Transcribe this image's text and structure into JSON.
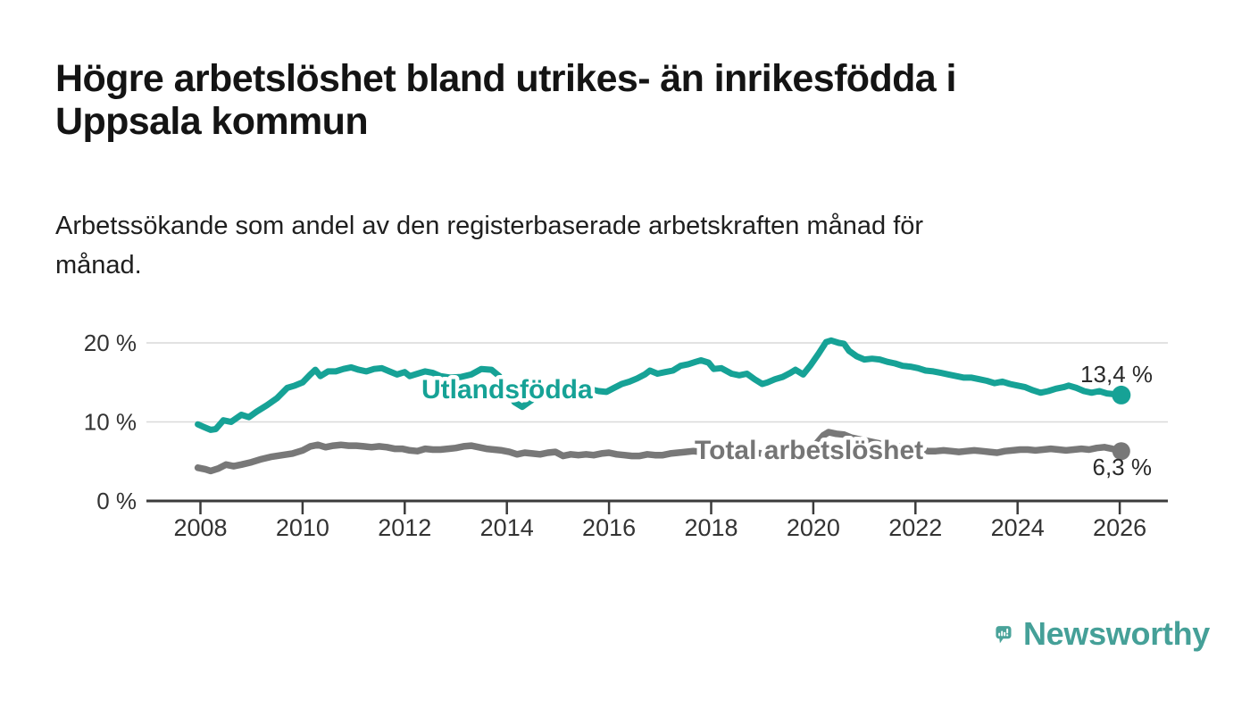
{
  "header": {
    "title_line1": "Högre arbetslöshet bland utrikes- än inrikesfödda i",
    "title_line2": "Uppsala kommun",
    "subtitle_line1": "Arbetssökande som andel av den registerbaserade arbetskraften månad för",
    "subtitle_line2": "månad."
  },
  "footer": {
    "brand": "Newsworthy",
    "logo_icon": "speech-bubble-bar-chart-icon"
  },
  "colors": {
    "accent_teal": "#16a296",
    "series_gray": "#787878",
    "label_gray": "#757575",
    "logo_teal": "#45a098",
    "grid": "#d9d9d9",
    "axis": "#3b3b3b",
    "tick_text": "#333333",
    "annotation_text": "#2a2a2a"
  },
  "chart_data": {
    "type": "line",
    "title": "Högre arbetslöshet bland utrikes- än inrikesfödda i Uppsala kommun",
    "subtitle": "Arbetssökande som andel av den registerbaserade arbetskraften månad för månad.",
    "xlabel": "",
    "ylabel": "",
    "grid": "horizontal",
    "legend_position": "inline-labels",
    "xlim": [
      2006.95,
      2026.95
    ],
    "ylim": [
      0,
      22.6
    ],
    "x_ticks": [
      2008,
      2010,
      2012,
      2014,
      2016,
      2018,
      2020,
      2022,
      2024,
      2026
    ],
    "y_ticks": [
      {
        "value": 0,
        "label": "0 %"
      },
      {
        "value": 10,
        "label": "10 %"
      },
      {
        "value": 20,
        "label": "20 %"
      }
    ],
    "series": [
      {
        "name": "Total arbetslöshet",
        "label": "Total arbetslöshet",
        "color": "#787878",
        "label_color": "#757575",
        "end_label": "6,3 %",
        "end_value": 6.3,
        "points": [
          [
            2007.95,
            4.2
          ],
          [
            2008.1,
            4.0
          ],
          [
            2008.2,
            3.8
          ],
          [
            2008.35,
            4.1
          ],
          [
            2008.5,
            4.6
          ],
          [
            2008.65,
            4.4
          ],
          [
            2008.8,
            4.6
          ],
          [
            2009.0,
            4.9
          ],
          [
            2009.2,
            5.3
          ],
          [
            2009.4,
            5.6
          ],
          [
            2009.6,
            5.8
          ],
          [
            2009.8,
            6.0
          ],
          [
            2010.0,
            6.4
          ],
          [
            2010.15,
            6.9
          ],
          [
            2010.3,
            7.1
          ],
          [
            2010.45,
            6.8
          ],
          [
            2010.6,
            7.0
          ],
          [
            2010.75,
            7.1
          ],
          [
            2010.9,
            7.0
          ],
          [
            2011.05,
            7.0
          ],
          [
            2011.2,
            6.9
          ],
          [
            2011.35,
            6.8
          ],
          [
            2011.5,
            6.9
          ],
          [
            2011.65,
            6.8
          ],
          [
            2011.8,
            6.6
          ],
          [
            2011.95,
            6.6
          ],
          [
            2012.1,
            6.4
          ],
          [
            2012.25,
            6.3
          ],
          [
            2012.4,
            6.6
          ],
          [
            2012.55,
            6.5
          ],
          [
            2012.7,
            6.5
          ],
          [
            2012.85,
            6.6
          ],
          [
            2013.0,
            6.7
          ],
          [
            2013.15,
            6.9
          ],
          [
            2013.3,
            7.0
          ],
          [
            2013.45,
            6.8
          ],
          [
            2013.6,
            6.6
          ],
          [
            2013.75,
            6.5
          ],
          [
            2013.9,
            6.4
          ],
          [
            2014.05,
            6.2
          ],
          [
            2014.2,
            5.9
          ],
          [
            2014.35,
            6.1
          ],
          [
            2014.5,
            6.0
          ],
          [
            2014.65,
            5.9
          ],
          [
            2014.8,
            6.1
          ],
          [
            2014.95,
            6.2
          ],
          [
            2015.1,
            5.7
          ],
          [
            2015.25,
            5.9
          ],
          [
            2015.4,
            5.8
          ],
          [
            2015.55,
            5.9
          ],
          [
            2015.7,
            5.8
          ],
          [
            2015.85,
            6.0
          ],
          [
            2016.0,
            6.1
          ],
          [
            2016.15,
            5.9
          ],
          [
            2016.3,
            5.8
          ],
          [
            2016.45,
            5.7
          ],
          [
            2016.6,
            5.7
          ],
          [
            2016.75,
            5.9
          ],
          [
            2016.9,
            5.8
          ],
          [
            2017.05,
            5.8
          ],
          [
            2017.2,
            6.0
          ],
          [
            2017.35,
            6.1
          ],
          [
            2017.5,
            6.2
          ],
          [
            2017.65,
            6.3
          ],
          [
            2017.8,
            6.2
          ],
          [
            2017.95,
            6.2
          ],
          [
            2018.1,
            6.4
          ],
          [
            2018.25,
            6.4
          ],
          [
            2018.4,
            6.3
          ],
          [
            2018.55,
            6.2
          ],
          [
            2018.7,
            6.1
          ],
          [
            2018.85,
            6.1
          ],
          [
            2019.0,
            6.0
          ],
          [
            2019.15,
            6.1
          ],
          [
            2019.3,
            6.2
          ],
          [
            2019.45,
            6.2
          ],
          [
            2019.6,
            6.3
          ],
          [
            2019.75,
            6.3
          ],
          [
            2019.9,
            6.5
          ],
          [
            2020.05,
            7.2
          ],
          [
            2020.2,
            8.3
          ],
          [
            2020.3,
            8.7
          ],
          [
            2020.45,
            8.5
          ],
          [
            2020.6,
            8.4
          ],
          [
            2020.75,
            8.0
          ],
          [
            2020.9,
            7.8
          ],
          [
            2021.05,
            7.6
          ],
          [
            2021.2,
            7.4
          ],
          [
            2021.35,
            7.2
          ],
          [
            2021.5,
            7.0
          ],
          [
            2021.65,
            6.9
          ],
          [
            2021.8,
            6.8
          ],
          [
            2021.95,
            6.7
          ],
          [
            2022.1,
            6.4
          ],
          [
            2022.25,
            6.3
          ],
          [
            2022.4,
            6.3
          ],
          [
            2022.55,
            6.4
          ],
          [
            2022.7,
            6.3
          ],
          [
            2022.85,
            6.2
          ],
          [
            2023.0,
            6.3
          ],
          [
            2023.15,
            6.4
          ],
          [
            2023.3,
            6.3
          ],
          [
            2023.45,
            6.2
          ],
          [
            2023.6,
            6.1
          ],
          [
            2023.75,
            6.3
          ],
          [
            2023.9,
            6.4
          ],
          [
            2024.05,
            6.5
          ],
          [
            2024.2,
            6.5
          ],
          [
            2024.35,
            6.4
          ],
          [
            2024.5,
            6.5
          ],
          [
            2024.65,
            6.6
          ],
          [
            2024.8,
            6.5
          ],
          [
            2024.95,
            6.4
          ],
          [
            2025.1,
            6.5
          ],
          [
            2025.25,
            6.6
          ],
          [
            2025.4,
            6.5
          ],
          [
            2025.55,
            6.7
          ],
          [
            2025.7,
            6.8
          ],
          [
            2025.85,
            6.6
          ],
          [
            2026.03,
            6.3
          ]
        ]
      },
      {
        "name": "Utlandsfödda",
        "label": "Utlandsfödda",
        "color": "#16a296",
        "label_color": "#16a296",
        "end_label": "13,4 %",
        "end_value": 13.4,
        "points": [
          [
            2007.95,
            9.7
          ],
          [
            2008.05,
            9.4
          ],
          [
            2008.2,
            9.0
          ],
          [
            2008.3,
            9.1
          ],
          [
            2008.45,
            10.2
          ],
          [
            2008.6,
            10.0
          ],
          [
            2008.8,
            10.9
          ],
          [
            2008.95,
            10.6
          ],
          [
            2009.1,
            11.3
          ],
          [
            2009.3,
            12.1
          ],
          [
            2009.5,
            13.0
          ],
          [
            2009.7,
            14.3
          ],
          [
            2009.85,
            14.6
          ],
          [
            2010.0,
            15.0
          ],
          [
            2010.15,
            16.0
          ],
          [
            2010.25,
            16.6
          ],
          [
            2010.35,
            15.8
          ],
          [
            2010.5,
            16.4
          ],
          [
            2010.65,
            16.4
          ],
          [
            2010.8,
            16.7
          ],
          [
            2010.95,
            16.9
          ],
          [
            2011.1,
            16.6
          ],
          [
            2011.25,
            16.4
          ],
          [
            2011.4,
            16.7
          ],
          [
            2011.55,
            16.8
          ],
          [
            2011.7,
            16.4
          ],
          [
            2011.85,
            16.0
          ],
          [
            2012.0,
            16.3
          ],
          [
            2012.1,
            15.8
          ],
          [
            2012.25,
            16.1
          ],
          [
            2012.4,
            16.4
          ],
          [
            2012.55,
            16.2
          ],
          [
            2012.7,
            15.8
          ],
          [
            2012.9,
            15.6
          ],
          [
            2013.1,
            15.7
          ],
          [
            2013.3,
            16.0
          ],
          [
            2013.5,
            16.7
          ],
          [
            2013.7,
            16.6
          ],
          [
            2013.85,
            15.8
          ],
          [
            2014.0,
            14.0
          ],
          [
            2014.15,
            12.5
          ],
          [
            2014.3,
            11.9
          ],
          [
            2014.45,
            12.6
          ],
          [
            2014.6,
            13.2
          ],
          [
            2014.75,
            13.6
          ],
          [
            2014.9,
            13.4
          ],
          [
            2015.05,
            13.7
          ],
          [
            2015.2,
            13.9
          ],
          [
            2015.35,
            13.6
          ],
          [
            2015.5,
            13.9
          ],
          [
            2015.65,
            14.1
          ],
          [
            2015.8,
            13.9
          ],
          [
            2015.95,
            13.8
          ],
          [
            2016.1,
            14.3
          ],
          [
            2016.25,
            14.8
          ],
          [
            2016.4,
            15.1
          ],
          [
            2016.55,
            15.5
          ],
          [
            2016.7,
            16.0
          ],
          [
            2016.8,
            16.5
          ],
          [
            2016.95,
            16.1
          ],
          [
            2017.1,
            16.3
          ],
          [
            2017.25,
            16.5
          ],
          [
            2017.4,
            17.1
          ],
          [
            2017.55,
            17.3
          ],
          [
            2017.7,
            17.6
          ],
          [
            2017.8,
            17.8
          ],
          [
            2017.95,
            17.5
          ],
          [
            2018.05,
            16.7
          ],
          [
            2018.2,
            16.8
          ],
          [
            2018.4,
            16.1
          ],
          [
            2018.55,
            15.9
          ],
          [
            2018.7,
            16.1
          ],
          [
            2018.85,
            15.4
          ],
          [
            2019.0,
            14.8
          ],
          [
            2019.1,
            15.0
          ],
          [
            2019.25,
            15.4
          ],
          [
            2019.4,
            15.7
          ],
          [
            2019.55,
            16.2
          ],
          [
            2019.65,
            16.6
          ],
          [
            2019.8,
            16.0
          ],
          [
            2019.95,
            17.2
          ],
          [
            2020.1,
            18.6
          ],
          [
            2020.25,
            20.1
          ],
          [
            2020.35,
            20.3
          ],
          [
            2020.5,
            20.0
          ],
          [
            2020.6,
            19.9
          ],
          [
            2020.7,
            19.0
          ],
          [
            2020.85,
            18.3
          ],
          [
            2021.0,
            17.9
          ],
          [
            2021.15,
            18.0
          ],
          [
            2021.3,
            17.9
          ],
          [
            2021.45,
            17.6
          ],
          [
            2021.6,
            17.4
          ],
          [
            2021.75,
            17.1
          ],
          [
            2021.9,
            17.0
          ],
          [
            2022.05,
            16.8
          ],
          [
            2022.2,
            16.5
          ],
          [
            2022.35,
            16.4
          ],
          [
            2022.5,
            16.2
          ],
          [
            2022.65,
            16.0
          ],
          [
            2022.8,
            15.8
          ],
          [
            2022.95,
            15.6
          ],
          [
            2023.1,
            15.6
          ],
          [
            2023.25,
            15.4
          ],
          [
            2023.4,
            15.2
          ],
          [
            2023.55,
            14.9
          ],
          [
            2023.7,
            15.1
          ],
          [
            2023.85,
            14.8
          ],
          [
            2024.0,
            14.6
          ],
          [
            2024.15,
            14.4
          ],
          [
            2024.3,
            14.0
          ],
          [
            2024.45,
            13.7
          ],
          [
            2024.6,
            13.9
          ],
          [
            2024.75,
            14.2
          ],
          [
            2024.9,
            14.4
          ],
          [
            2025.0,
            14.6
          ],
          [
            2025.15,
            14.3
          ],
          [
            2025.3,
            13.9
          ],
          [
            2025.45,
            13.7
          ],
          [
            2025.6,
            13.9
          ],
          [
            2025.75,
            13.6
          ],
          [
            2025.9,
            13.5
          ],
          [
            2026.03,
            13.4
          ]
        ]
      }
    ]
  }
}
